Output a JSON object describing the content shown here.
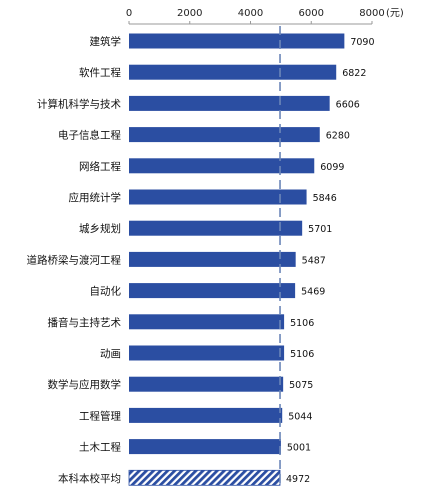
{
  "chart_data": {
    "type": "bar",
    "orientation": "horizontal",
    "unit": "(元)",
    "categories": [
      "建筑学",
      "软件工程",
      "计算机科学与技术",
      "电子信息工程",
      "网络工程",
      "应用统计学",
      "城乡规划",
      "道路桥梁与渡河工程",
      "自动化",
      "播音与主持艺术",
      "动画",
      "数学与应用数学",
      "工程管理",
      "土木工程",
      "本科本校平均"
    ],
    "values": [
      7090,
      6822,
      6606,
      6280,
      6099,
      5846,
      5701,
      5487,
      5469,
      5106,
      5106,
      5075,
      5044,
      5001,
      4972
    ],
    "value_labels": [
      "7090",
      "6822",
      "6606",
      "6280",
      "6099",
      "5846",
      "5701",
      "5487",
      "5469",
      "5106",
      "5106",
      "5075",
      "5044",
      "5001",
      "4972"
    ],
    "ticks": [
      0,
      2000,
      4000,
      6000,
      8000
    ],
    "tick_labels": [
      "0",
      "2000",
      "4000",
      "6000",
      "8000"
    ],
    "xlim": [
      0,
      8000
    ],
    "x_axis_position": "top",
    "reference_line": 4972,
    "highlight_category": "本科本校平均",
    "grid": false,
    "colors": {
      "bar": "#2b4ea2",
      "highlight": "#2b4ea2",
      "reference_line": "#6b86b8",
      "axis": "#999999"
    }
  }
}
